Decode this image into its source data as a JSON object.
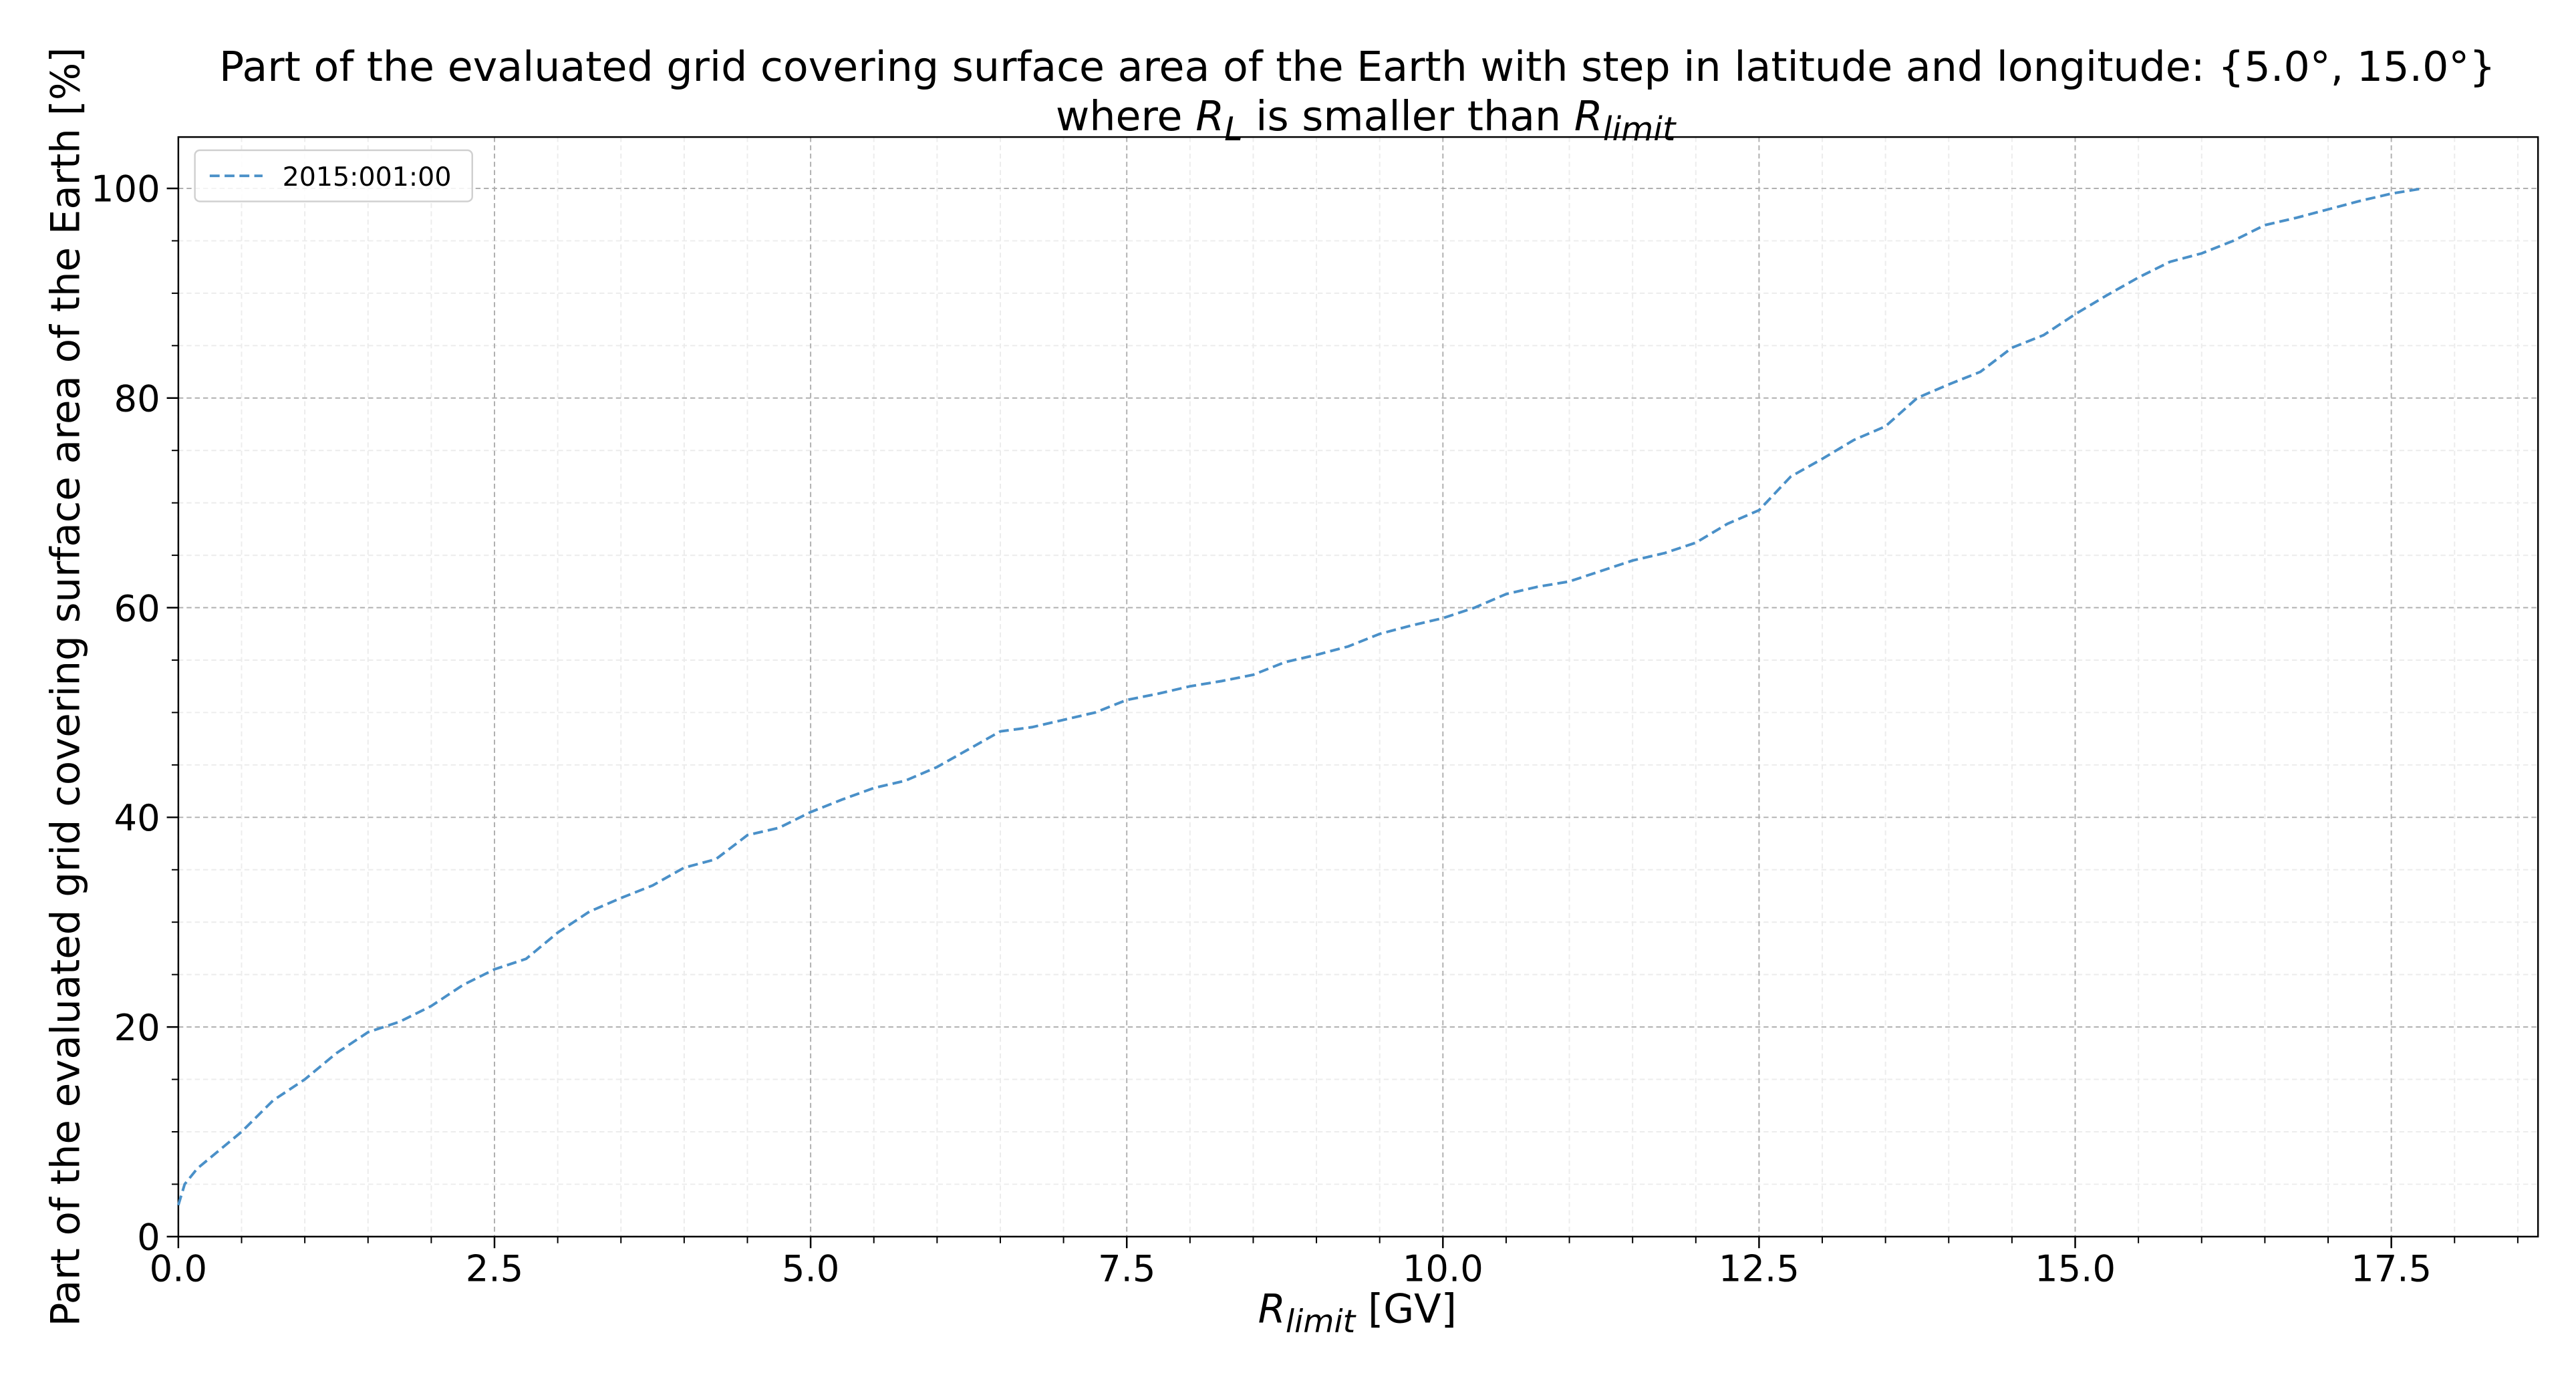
{
  "chart_data": {
    "type": "line",
    "title": "Part of the evaluated grid covering surface area of the Earth with step in latitude and longitude: {5.0°, 15.0°}",
    "title_line2": [
      {
        "text": "where "
      },
      {
        "text": "R",
        "italic": true
      },
      {
        "text": "L",
        "italic": true,
        "sub": true
      },
      {
        "text": " is smaller than "
      },
      {
        "text": "R",
        "italic": true
      },
      {
        "text": "limit",
        "italic": true,
        "sub": true
      }
    ],
    "xlabel": [
      {
        "text": "R",
        "italic": true
      },
      {
        "text": "limit",
        "italic": true,
        "sub": true
      },
      {
        "text": " [GV]"
      }
    ],
    "ylabel": "Part of the evaluated grid covering surface area of the Earth  [%]",
    "legend": "upper left",
    "grid": true,
    "x": [
      0.0,
      0.05,
      0.15,
      0.3,
      0.5,
      0.75,
      1.0,
      1.25,
      1.5,
      1.75,
      2.0,
      2.25,
      2.5,
      2.75,
      3.0,
      3.25,
      3.5,
      3.75,
      4.0,
      4.25,
      4.5,
      4.75,
      5.0,
      5.25,
      5.5,
      5.75,
      6.0,
      6.25,
      6.5,
      6.75,
      7.0,
      7.25,
      7.5,
      7.75,
      8.0,
      8.25,
      8.5,
      8.75,
      9.0,
      9.25,
      9.5,
      9.75,
      10.0,
      10.25,
      10.5,
      10.75,
      11.0,
      11.25,
      11.5,
      11.75,
      12.0,
      12.25,
      12.5,
      12.75,
      13.0,
      13.25,
      13.5,
      13.75,
      14.0,
      14.25,
      14.5,
      14.75,
      15.0,
      15.25,
      15.5,
      15.75,
      16.0,
      16.25,
      16.5,
      16.75,
      17.0,
      17.25,
      17.5,
      17.75
    ],
    "series": [
      {
        "name": "2015:001:00",
        "color": "#4a90c8",
        "values": [
          3,
          5,
          6.5,
          8,
          10,
          13,
          15,
          17.5,
          19.5,
          20.5,
          22,
          24,
          25.5,
          26.5,
          29,
          31,
          32.3,
          33.5,
          35.2,
          36,
          38.3,
          39,
          40.5,
          41.7,
          42.8,
          43.5,
          44.8,
          46.5,
          48.2,
          48.6,
          49.3,
          50,
          51.2,
          51.8,
          52.5,
          53,
          53.6,
          54.8,
          55.5,
          56.3,
          57.5,
          58.3,
          59,
          60,
          61.3,
          62,
          62.5,
          63.5,
          64.5,
          65.2,
          66.2,
          68,
          69.3,
          72.5,
          74.2,
          76,
          77.3,
          80,
          81.3,
          82.5,
          84.8,
          86,
          88,
          89.8,
          91.5,
          93,
          93.8,
          95,
          96.5,
          97.2,
          98,
          98.8,
          99.5,
          100
        ]
      }
    ],
    "xlim": [
      0,
      18.66
    ],
    "ylim": [
      0,
      104.9
    ],
    "xticks": [
      {
        "value": 0,
        "label": "0.0"
      },
      2.5,
      {
        "value": 5,
        "label": "5.0"
      },
      7.5,
      {
        "value": 10,
        "label": "10.0"
      },
      12.5,
      {
        "value": 15,
        "label": "15.0"
      },
      17.5
    ],
    "yticks": [
      0,
      20,
      40,
      60,
      80,
      100
    ],
    "xminorticks": [
      0.5,
      1,
      1.5,
      2,
      3,
      3.5,
      4,
      4.5,
      5.5,
      6,
      6.5,
      7,
      8,
      8.5,
      9,
      9.5,
      10.5,
      11,
      11.5,
      12,
      13,
      13.5,
      14,
      14.5,
      15.5,
      16,
      16.5,
      17,
      18,
      18.5
    ],
    "yminorticks": [
      5,
      10,
      15,
      25,
      30,
      35,
      45,
      50,
      55,
      65,
      70,
      75,
      85,
      90,
      95
    ]
  }
}
